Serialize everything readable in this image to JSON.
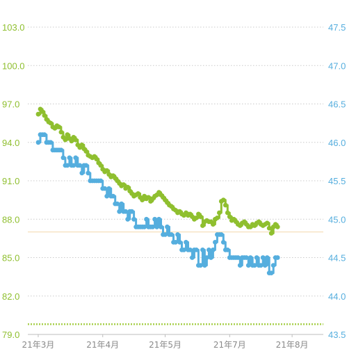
{
  "chart_data": {
    "type": "line",
    "title": "",
    "grid": true,
    "legend": "none",
    "x_labels": [
      "21年3月",
      "21年4月",
      "21年5月",
      "21年7月",
      "21年8月"
    ],
    "x_label_days": [
      0,
      31,
      61,
      92,
      122
    ],
    "x_range_days": [
      -5,
      137
    ],
    "y_left": {
      "ticks": [
        "103.0",
        "100.0",
        "97.0",
        "94.0",
        "91.0",
        "88.0",
        "85.0",
        "82.0",
        "79.0"
      ],
      "range": [
        79.0,
        103.0
      ],
      "color": "#8fbf2f"
    },
    "y_right": {
      "ticks": [
        "47.5",
        "47.0",
        "46.5",
        "46.0",
        "45.5",
        "45.0",
        "44.5",
        "44.0",
        "43.5"
      ],
      "range": [
        43.5,
        47.5
      ],
      "color": "#55aede"
    },
    "reference_lines": [
      {
        "axis": "left",
        "value": 87.0,
        "color": "#f3d8ad",
        "style": "solid"
      },
      {
        "axis": "left",
        "value": 79.8,
        "color": "#a7cf4a",
        "style": "dotted"
      }
    ],
    "series": [
      {
        "axis": "left",
        "color": "#8fbf2f",
        "points": [
          [
            0,
            96.2
          ],
          [
            1,
            96.6
          ],
          [
            2,
            96.4
          ],
          [
            3,
            96.1
          ],
          [
            4,
            95.8
          ],
          [
            5,
            95.6
          ],
          [
            6,
            95.5
          ],
          [
            7,
            95.2
          ],
          [
            8,
            95.1
          ],
          [
            9,
            95.3
          ],
          [
            10,
            95.2
          ],
          [
            11,
            94.8
          ],
          [
            12,
            94.4
          ],
          [
            13,
            94.2
          ],
          [
            14,
            94.6
          ],
          [
            15,
            94.3
          ],
          [
            16,
            94.1
          ],
          [
            17,
            94.4
          ],
          [
            18,
            94.2
          ],
          [
            19,
            93.8
          ],
          [
            20,
            93.6
          ],
          [
            21,
            93.8
          ],
          [
            22,
            93.5
          ],
          [
            23,
            93.3
          ],
          [
            24,
            93.0
          ],
          [
            25,
            92.9
          ],
          [
            26,
            92.8
          ],
          [
            27,
            92.9
          ],
          [
            28,
            92.7
          ],
          [
            29,
            92.4
          ],
          [
            30,
            92.2
          ],
          [
            31,
            91.9
          ],
          [
            32,
            91.7
          ],
          [
            33,
            91.8
          ],
          [
            34,
            91.5
          ],
          [
            35,
            91.3
          ],
          [
            36,
            91.4
          ],
          [
            37,
            91.2
          ],
          [
            38,
            91.0
          ],
          [
            39,
            90.8
          ],
          [
            40,
            90.6
          ],
          [
            41,
            90.7
          ],
          [
            42,
            90.4
          ],
          [
            43,
            90.5
          ],
          [
            44,
            90.2
          ],
          [
            45,
            90.0
          ],
          [
            46,
            89.8
          ],
          [
            47,
            89.9
          ],
          [
            48,
            90.0
          ],
          [
            49,
            89.7
          ],
          [
            50,
            89.5
          ],
          [
            51,
            89.8
          ],
          [
            52,
            89.6
          ],
          [
            53,
            89.7
          ],
          [
            54,
            89.4
          ],
          [
            55,
            89.6
          ],
          [
            56,
            89.8
          ],
          [
            57,
            89.9
          ],
          [
            58,
            90.1
          ],
          [
            59,
            89.9
          ],
          [
            60,
            89.7
          ],
          [
            61,
            89.5
          ],
          [
            62,
            89.3
          ],
          [
            63,
            89.1
          ],
          [
            64,
            89.0
          ],
          [
            65,
            88.8
          ],
          [
            66,
            88.7
          ],
          [
            67,
            88.5
          ],
          [
            68,
            88.6
          ],
          [
            69,
            88.4
          ],
          [
            70,
            88.3
          ],
          [
            71,
            88.5
          ],
          [
            72,
            88.3
          ],
          [
            73,
            88.4
          ],
          [
            74,
            88.2
          ],
          [
            75,
            88.0
          ],
          [
            76,
            88.1
          ],
          [
            77,
            88.4
          ],
          [
            78,
            88.2
          ],
          [
            79,
            87.5
          ],
          [
            80,
            87.8
          ],
          [
            81,
            87.9
          ],
          [
            82,
            87.8
          ],
          [
            83,
            87.8
          ],
          [
            84,
            87.6
          ],
          [
            85,
            88.0
          ],
          [
            86,
            88.1
          ],
          [
            87,
            88.5
          ],
          [
            88,
            89.4
          ],
          [
            89,
            89.5
          ],
          [
            90,
            89.1
          ],
          [
            91,
            88.5
          ],
          [
            92,
            88.2
          ],
          [
            93,
            87.9
          ],
          [
            94,
            88.0
          ],
          [
            95,
            87.8
          ],
          [
            96,
            87.6
          ],
          [
            97,
            87.5
          ],
          [
            98,
            87.7
          ],
          [
            99,
            87.8
          ],
          [
            100,
            87.6
          ],
          [
            101,
            87.4
          ],
          [
            102,
            87.4
          ],
          [
            103,
            87.6
          ],
          [
            104,
            87.5
          ],
          [
            105,
            87.7
          ],
          [
            106,
            87.8
          ],
          [
            107,
            87.6
          ],
          [
            108,
            87.5
          ],
          [
            109,
            87.6
          ],
          [
            110,
            87.7
          ],
          [
            111,
            87.3
          ],
          [
            112,
            86.9
          ],
          [
            113,
            87.4
          ],
          [
            114,
            87.6
          ],
          [
            115,
            87.4
          ]
        ]
      },
      {
        "axis": "right",
        "color": "#55aede",
        "points": [
          [
            0,
            46.0
          ],
          [
            1,
            46.1
          ],
          [
            2,
            46.1
          ],
          [
            3,
            46.1
          ],
          [
            4,
            46.0
          ],
          [
            5,
            46.0
          ],
          [
            6,
            46.0
          ],
          [
            7,
            45.9
          ],
          [
            8,
            45.9
          ],
          [
            9,
            45.9
          ],
          [
            10,
            45.9
          ],
          [
            11,
            45.9
          ],
          [
            12,
            45.8
          ],
          [
            13,
            45.7
          ],
          [
            14,
            45.7
          ],
          [
            15,
            45.8
          ],
          [
            16,
            45.7
          ],
          [
            17,
            45.7
          ],
          [
            18,
            45.8
          ],
          [
            19,
            45.7
          ],
          [
            20,
            45.7
          ],
          [
            21,
            45.6
          ],
          [
            22,
            45.7
          ],
          [
            23,
            45.7
          ],
          [
            24,
            45.6
          ],
          [
            25,
            45.5
          ],
          [
            26,
            45.5
          ],
          [
            27,
            45.5
          ],
          [
            28,
            45.5
          ],
          [
            29,
            45.5
          ],
          [
            30,
            45.5
          ],
          [
            31,
            45.4
          ],
          [
            32,
            45.4
          ],
          [
            33,
            45.3
          ],
          [
            34,
            45.4
          ],
          [
            35,
            45.3
          ],
          [
            36,
            45.3
          ],
          [
            37,
            45.2
          ],
          [
            38,
            45.2
          ],
          [
            39,
            45.1
          ],
          [
            40,
            45.2
          ],
          [
            41,
            45.1
          ],
          [
            42,
            45.1
          ],
          [
            43,
            45.0
          ],
          [
            44,
            45.1
          ],
          [
            45,
            45.1
          ],
          [
            46,
            45.0
          ],
          [
            47,
            44.9
          ],
          [
            48,
            44.9
          ],
          [
            49,
            44.9
          ],
          [
            50,
            44.9
          ],
          [
            51,
            44.9
          ],
          [
            52,
            45.0
          ],
          [
            53,
            44.9
          ],
          [
            54,
            44.9
          ],
          [
            55,
            44.9
          ],
          [
            56,
            45.0
          ],
          [
            57,
            44.9
          ],
          [
            58,
            45.0
          ],
          [
            59,
            44.9
          ],
          [
            60,
            44.8
          ],
          [
            61,
            44.8
          ],
          [
            62,
            44.9
          ],
          [
            63,
            44.8
          ],
          [
            64,
            44.8
          ],
          [
            65,
            44.7
          ],
          [
            66,
            44.7
          ],
          [
            67,
            44.8
          ],
          [
            68,
            44.7
          ],
          [
            69,
            44.6
          ],
          [
            70,
            44.6
          ],
          [
            71,
            44.7
          ],
          [
            72,
            44.6
          ],
          [
            73,
            44.6
          ],
          [
            74,
            44.5
          ],
          [
            75,
            44.6
          ],
          [
            76,
            44.6
          ],
          [
            77,
            44.4
          ],
          [
            78,
            44.4
          ],
          [
            79,
            44.6
          ],
          [
            80,
            44.4
          ],
          [
            81,
            44.5
          ],
          [
            82,
            44.6
          ],
          [
            83,
            44.5
          ],
          [
            84,
            44.6
          ],
          [
            85,
            44.7
          ],
          [
            86,
            44.8
          ],
          [
            87,
            44.8
          ],
          [
            88,
            44.8
          ],
          [
            89,
            44.7
          ],
          [
            90,
            44.6
          ],
          [
            91,
            44.6
          ],
          [
            92,
            44.5
          ],
          [
            93,
            44.5
          ],
          [
            94,
            44.5
          ],
          [
            95,
            44.5
          ],
          [
            96,
            44.5
          ],
          [
            97,
            44.4
          ],
          [
            98,
            44.5
          ],
          [
            99,
            44.5
          ],
          [
            100,
            44.5
          ],
          [
            101,
            44.4
          ],
          [
            102,
            44.5
          ],
          [
            103,
            44.4
          ],
          [
            104,
            44.4
          ],
          [
            105,
            44.5
          ],
          [
            106,
            44.4
          ],
          [
            107,
            44.4
          ],
          [
            108,
            44.5
          ],
          [
            109,
            44.4
          ],
          [
            110,
            44.5
          ],
          [
            111,
            44.3
          ],
          [
            112,
            44.3
          ],
          [
            113,
            44.4
          ],
          [
            114,
            44.5
          ],
          [
            115,
            44.5
          ]
        ]
      }
    ]
  }
}
